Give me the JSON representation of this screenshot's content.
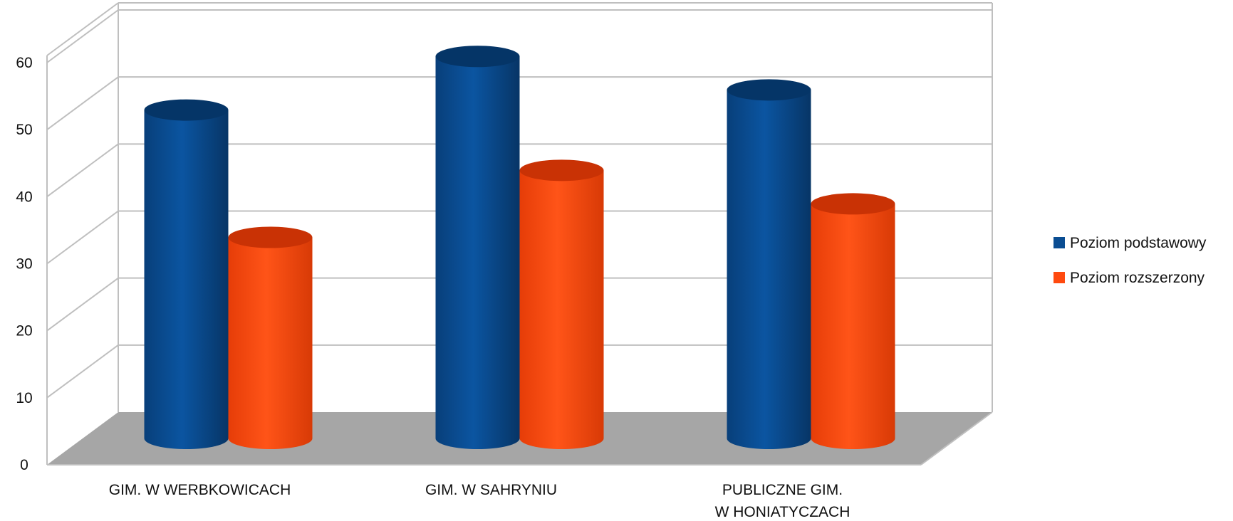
{
  "chart_data": {
    "type": "bar",
    "style": "3d-cylinder",
    "categories": [
      [
        "GIM. W WERBKOWICACH"
      ],
      [
        "GIM. W SAHRYNIU"
      ],
      [
        "PUBLICZNE GIM.",
        "W HONIATYCZACH"
      ]
    ],
    "series": [
      {
        "name": "Poziom podstawowy",
        "values": [
          49,
          57,
          52
        ],
        "color": "#0A4D92"
      },
      {
        "name": "Poziom rozszerzony",
        "values": [
          30,
          40,
          35
        ],
        "color": "#FF4A0F"
      }
    ],
    "y_ticks": [
      "0",
      "10",
      "20",
      "30",
      "40",
      "50",
      "60"
    ],
    "ylim": [
      0,
      60
    ],
    "grid": true,
    "floor_color": "#A6A6A6",
    "legend": "right"
  }
}
